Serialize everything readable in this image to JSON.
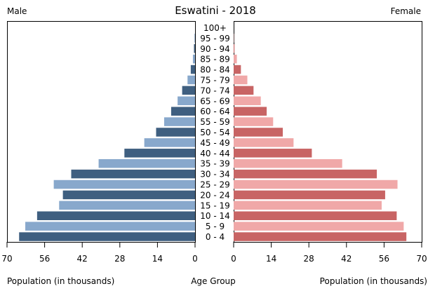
{
  "chart_data": {
    "type": "bar",
    "title": "Eswatini - 2018",
    "left_label": "Male",
    "right_label": "Female",
    "xlabel_left": "Population (in thousands)",
    "xlabel_center": "Age Group",
    "xlabel_right": "Population (in thousands)",
    "xlim": [
      0,
      70
    ],
    "ticks": [
      "70",
      "56",
      "42",
      "28",
      "14",
      "0"
    ],
    "tick_values": [
      70,
      56,
      42,
      28,
      14,
      0
    ],
    "categories": [
      "100+",
      "95 - 99",
      "90 - 94",
      "85 - 89",
      "80 - 84",
      "75 - 79",
      "70 - 74",
      "65 - 69",
      "60 - 64",
      "55 - 59",
      "50 - 54",
      "45 - 49",
      "40 - 44",
      "35 - 39",
      "30 - 34",
      "25 - 29",
      "20 - 24",
      "15 - 19",
      "10 - 14",
      "5 - 9",
      "0 - 4"
    ],
    "series": [
      {
        "name": "Male",
        "values": [
          0,
          0.2,
          0.4,
          0.8,
          1.6,
          2.8,
          4.8,
          6.5,
          8.9,
          11.5,
          14.5,
          18.9,
          26.3,
          35.9,
          46.1,
          52.6,
          49.2,
          50.6,
          58.8,
          63.2,
          65.5
        ]
      },
      {
        "name": "Female",
        "values": [
          0,
          0.1,
          0.3,
          1.2,
          2.7,
          5.1,
          7.4,
          10.1,
          12.3,
          14.7,
          18.3,
          22.3,
          29.1,
          40.4,
          53.3,
          61.0,
          56.4,
          55.1,
          60.7,
          63.3,
          64.3
        ]
      }
    ],
    "colors": {
      "male_dark": "#3f5f80",
      "male_light": "#88a8cc",
      "female_dark": "#c86464",
      "female_light": "#f0a8a8"
    },
    "grid": false
  }
}
